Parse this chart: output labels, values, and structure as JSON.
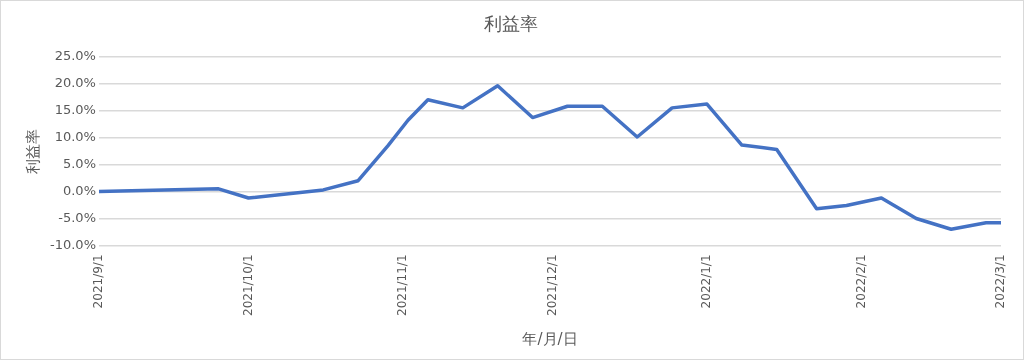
{
  "chart_data": {
    "type": "line",
    "title": "利益率",
    "xlabel": "年/月/日",
    "ylabel": "利益率",
    "x": [
      "2021-09-01",
      "2021-09-25",
      "2021-10-01",
      "2021-10-16",
      "2021-10-23",
      "2021-10-29",
      "2021-11-02",
      "2021-11-06",
      "2021-11-13",
      "2021-11-20",
      "2021-11-27",
      "2021-12-04",
      "2021-12-11",
      "2021-12-18",
      "2021-12-25",
      "2022-01-01",
      "2022-01-08",
      "2022-01-15",
      "2022-01-23",
      "2022-01-29",
      "2022-02-05",
      "2022-02-12",
      "2022-02-19",
      "2022-02-26",
      "2022-03-01"
    ],
    "series": [
      {
        "color": "#4472c4",
        "values": [
          0.0,
          0.5,
          -1.2,
          0.3,
          2.0,
          8.5,
          13.2,
          17.0,
          15.5,
          19.6,
          13.7,
          15.8,
          15.8,
          10.1,
          15.5,
          16.2,
          8.6,
          7.8,
          -3.2,
          -2.6,
          -1.2,
          -5.0,
          -7.0,
          -5.8,
          -5.8
        ]
      }
    ],
    "xlim": [
      "2021-09-01",
      "2022-03-01"
    ],
    "xticks": [
      {
        "value": "2021-09-01",
        "label": "2021/9/1"
      },
      {
        "value": "2021-10-01",
        "label": "2021/10/1"
      },
      {
        "value": "2021-11-01",
        "label": "2021/11/1"
      },
      {
        "value": "2021-12-01",
        "label": "2021/12/1"
      },
      {
        "value": "2022-01-01",
        "label": "2022/1/1"
      },
      {
        "value": "2022-02-01",
        "label": "2022/2/1"
      },
      {
        "value": "2022-03-01",
        "label": "2022/3/1"
      }
    ],
    "ylim": [
      -10,
      25
    ],
    "yticks": [
      {
        "value": -10,
        "label": "-10.0%"
      },
      {
        "value": -5,
        "label": "-5.0%"
      },
      {
        "value": 0,
        "label": "0.0%"
      },
      {
        "value": 5,
        "label": "5.0%"
      },
      {
        "value": 10,
        "label": "10.0%"
      },
      {
        "value": 15,
        "label": "15.0%"
      },
      {
        "value": 20,
        "label": "20.0%"
      },
      {
        "value": 25,
        "label": "25.0%"
      }
    ],
    "grid": "y",
    "legend": false,
    "marker": "none",
    "line_style": "solid"
  }
}
